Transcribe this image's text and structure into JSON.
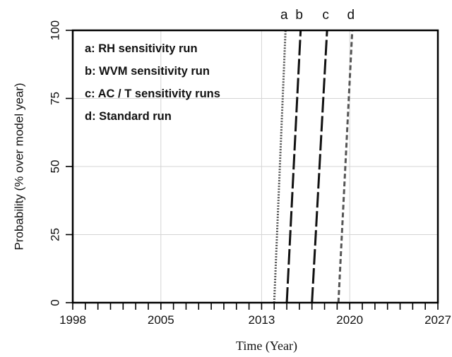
{
  "chart_data": {
    "type": "line",
    "title": "",
    "xlabel": "Time (Year)",
    "ylabel": "Probability (% over model year)",
    "xlim": [
      1998,
      2027
    ],
    "ylim": [
      0,
      100
    ],
    "x_ticks": [
      1998,
      1999,
      2000,
      2001,
      2002,
      2003,
      2004,
      2005,
      2006,
      2007,
      2008,
      2009,
      2010,
      2011,
      2012,
      2013,
      2014,
      2015,
      2016,
      2017,
      2018,
      2019,
      2020,
      2021,
      2022,
      2023,
      2024,
      2025,
      2026,
      2027
    ],
    "x_tick_labels": [
      "1998",
      "2005",
      "2013",
      "2020",
      "2027"
    ],
    "x_tick_label_values": [
      1998,
      2005,
      2013,
      2020,
      2027
    ],
    "y_ticks": [
      0,
      25,
      50,
      75,
      100
    ],
    "y_tick_labels": [
      "0",
      "25",
      "50",
      "75",
      "100"
    ],
    "gridlines": {
      "x": [
        2005,
        2013,
        2020
      ],
      "y": [
        25,
        50,
        75
      ]
    },
    "legend_position": "top-left",
    "legend": [
      "a: RH sensitivity run",
      "b: WVM sensitivity run",
      "c: AC / T sensitivity runs",
      "d: Standard run"
    ],
    "series": [
      {
        "name": "a",
        "style": "dotted",
        "color": "#555555",
        "x": [
          2014.0,
          2014.9
        ],
        "y": [
          0,
          100
        ]
      },
      {
        "name": "b",
        "style": "long-dash",
        "color": "#111111",
        "x": [
          2015.0,
          2016.1
        ],
        "y": [
          0,
          100
        ]
      },
      {
        "name": "c",
        "style": "long-dash",
        "color": "#111111",
        "x": [
          2017.0,
          2018.2
        ],
        "y": [
          0,
          100
        ]
      },
      {
        "name": "d",
        "style": "dash",
        "color": "#555555",
        "x": [
          2019.1,
          2020.2
        ],
        "y": [
          0,
          100
        ]
      }
    ]
  }
}
